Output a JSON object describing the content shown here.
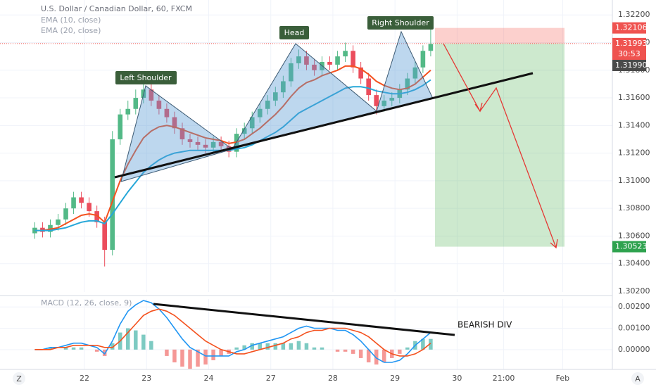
{
  "toolbar": {
    "left": "Z",
    "right": "A"
  },
  "chart_data": [
    {
      "type": "candlestick",
      "title": "U.S. Dollar / Canadian Dollar, 60, FXCM",
      "xlim": [
        -1.36,
        8.5
      ],
      "ylim": [
        1.30195,
        1.32308
      ],
      "yticks": [
        {
          "value": 1.302,
          "label": "1.30200"
        },
        {
          "value": 1.304,
          "label": "1.30400"
        },
        {
          "value": 1.306,
          "label": "1.30600"
        },
        {
          "value": 1.308,
          "label": "1.30800"
        },
        {
          "value": 1.31,
          "label": "1.31000"
        },
        {
          "value": 1.312,
          "label": "1.31200"
        },
        {
          "value": 1.314,
          "label": "1.31400"
        },
        {
          "value": 1.316,
          "label": "1.31600"
        },
        {
          "value": 1.318,
          "label": "1.31800"
        },
        {
          "value": 1.32,
          "label": "1.32000"
        },
        {
          "value": 1.322,
          "label": "1.32200"
        }
      ],
      "grid": true,
      "up_color": "#53b987",
      "down_color": "#eb4d5c",
      "x": [
        -0.8,
        -0.675,
        -0.55,
        -0.425,
        -0.3,
        -0.175,
        -0.05,
        0.075,
        0.2,
        0.325,
        0.45,
        0.575,
        0.7,
        0.825,
        0.95,
        1.075,
        1.2,
        1.325,
        1.45,
        1.575,
        1.7,
        1.825,
        1.95,
        2.075,
        2.2,
        2.325,
        2.45,
        2.575,
        2.7,
        2.825,
        2.95,
        3.075,
        3.2,
        3.325,
        3.45,
        3.575,
        3.7,
        3.825,
        3.95,
        4.075,
        4.2,
        4.325,
        4.45,
        4.575,
        4.7,
        4.825,
        4.95,
        5.075,
        5.2,
        5.325,
        5.45,
        5.575
      ],
      "open": [
        1.3062,
        1.3066,
        1.3063,
        1.3068,
        1.3072,
        1.308,
        1.3088,
        1.3084,
        1.3078,
        1.307,
        1.305,
        1.313,
        1.3148,
        1.3152,
        1.316,
        1.3166,
        1.3158,
        1.3152,
        1.3146,
        1.3138,
        1.313,
        1.3128,
        1.3126,
        1.3124,
        1.3128,
        1.3125,
        1.3121,
        1.3134,
        1.3138,
        1.3146,
        1.3152,
        1.3158,
        1.3164,
        1.3172,
        1.3185,
        1.319,
        1.3184,
        1.318,
        1.3186,
        1.3184,
        1.319,
        1.3194,
        1.3182,
        1.3174,
        1.3162,
        1.3154,
        1.3158,
        1.316,
        1.3166,
        1.3174,
        1.3182,
        1.3194
      ],
      "high": [
        1.307,
        1.307,
        1.3072,
        1.3076,
        1.3084,
        1.3092,
        1.3092,
        1.3088,
        1.3082,
        1.3074,
        1.3136,
        1.3152,
        1.3158,
        1.3166,
        1.317,
        1.317,
        1.3162,
        1.3156,
        1.315,
        1.3142,
        1.3134,
        1.3132,
        1.313,
        1.3132,
        1.3132,
        1.3129,
        1.3138,
        1.3142,
        1.315,
        1.3156,
        1.3162,
        1.3168,
        1.3176,
        1.3189,
        1.3195,
        1.3194,
        1.3188,
        1.319,
        1.319,
        1.3194,
        1.32,
        1.3198,
        1.3186,
        1.3178,
        1.3166,
        1.3162,
        1.3164,
        1.317,
        1.3178,
        1.3186,
        1.3198,
        1.321
      ],
      "low": [
        1.3058,
        1.3059,
        1.3059,
        1.3064,
        1.3068,
        1.3076,
        1.308,
        1.3074,
        1.3066,
        1.3038,
        1.3046,
        1.3126,
        1.3144,
        1.3148,
        1.3156,
        1.3154,
        1.3148,
        1.3142,
        1.3134,
        1.3126,
        1.3124,
        1.3122,
        1.312,
        1.312,
        1.3121,
        1.3117,
        1.3117,
        1.313,
        1.3134,
        1.3142,
        1.3148,
        1.3154,
        1.316,
        1.3168,
        1.3181,
        1.318,
        1.3176,
        1.3176,
        1.318,
        1.318,
        1.3186,
        1.3178,
        1.317,
        1.3158,
        1.3148,
        1.315,
        1.3154,
        1.3156,
        1.3162,
        1.317,
        1.3178,
        1.319
      ],
      "close": [
        1.3066,
        1.3063,
        1.3068,
        1.3072,
        1.308,
        1.3088,
        1.3084,
        1.3078,
        1.307,
        1.305,
        1.313,
        1.3148,
        1.3152,
        1.316,
        1.3166,
        1.3158,
        1.3152,
        1.3146,
        1.3138,
        1.313,
        1.3128,
        1.3126,
        1.3124,
        1.3128,
        1.3125,
        1.3121,
        1.3134,
        1.3138,
        1.3146,
        1.3152,
        1.3158,
        1.3164,
        1.3172,
        1.3185,
        1.319,
        1.3184,
        1.318,
        1.3186,
        1.3184,
        1.319,
        1.3194,
        1.3182,
        1.3174,
        1.3162,
        1.3154,
        1.3158,
        1.316,
        1.3166,
        1.3174,
        1.3182,
        1.3194,
        1.3199
      ],
      "series": [
        {
          "name": "EMA (10, close)",
          "color": "#f4511e",
          "values": [
            1.3064,
            1.3064,
            1.3065,
            1.3066,
            1.3069,
            1.3072,
            1.3075,
            1.3076,
            1.3075,
            1.307,
            1.3085,
            1.31,
            1.3112,
            1.3122,
            1.3131,
            1.3136,
            1.3139,
            1.314,
            1.3139,
            1.3137,
            1.3135,
            1.3133,
            1.3131,
            1.313,
            1.3129,
            1.3127,
            1.3128,
            1.313,
            1.3134,
            1.3138,
            1.3143,
            1.3148,
            1.3154,
            1.3161,
            1.3167,
            1.3171,
            1.3173,
            1.3176,
            1.3178,
            1.318,
            1.3183,
            1.3183,
            1.3181,
            1.3177,
            1.3172,
            1.3169,
            1.3167,
            1.3166,
            1.3167,
            1.317,
            1.3175,
            1.318
          ]
        },
        {
          "name": "EMA (20, close)",
          "color": "#26a7d8",
          "values": [
            1.3064,
            1.3064,
            1.3064,
            1.3065,
            1.3066,
            1.3068,
            1.307,
            1.3071,
            1.3071,
            1.3069,
            1.3076,
            1.3084,
            1.3092,
            1.3099,
            1.3106,
            1.3111,
            1.3115,
            1.3118,
            1.312,
            1.3121,
            1.3122,
            1.3122,
            1.3122,
            1.3122,
            1.3122,
            1.3122,
            1.3123,
            1.3124,
            1.3126,
            1.3129,
            1.3132,
            1.3135,
            1.3139,
            1.3144,
            1.3149,
            1.3152,
            1.3155,
            1.3158,
            1.3161,
            1.3164,
            1.3167,
            1.3168,
            1.3168,
            1.3167,
            1.3165,
            1.3164,
            1.3163,
            1.3163,
            1.3164,
            1.3166,
            1.3169,
            1.3173
          ]
        }
      ],
      "price_labels": [
        {
          "value": 1.32106,
          "label": "1.32106",
          "color": "#ef5350"
        },
        {
          "value": 1.31993,
          "label": "1.31993",
          "color": "#ef5350"
        },
        {
          "value": 1.3199,
          "label": "1.31990",
          "color": "#4a4a4a"
        },
        {
          "value": 1.30523,
          "label": "1.30523",
          "color": "#2ea24e"
        }
      ],
      "countdown": "30:53",
      "annotations": [
        "Left Shoulder",
        "Head",
        "Right Shoulder"
      ]
    },
    {
      "type": "macd",
      "legend": "MACD (12, 26, close, 9)",
      "annotation": "BEARISH DIV",
      "xlim": [
        -1.36,
        8.5
      ],
      "xticks": [
        {
          "value": 0,
          "label": "22"
        },
        {
          "value": 1,
          "label": "23"
        },
        {
          "value": 2,
          "label": "24"
        },
        {
          "value": 3,
          "label": "27"
        },
        {
          "value": 4,
          "label": "28"
        },
        {
          "value": 5,
          "label": "29"
        },
        {
          "value": 6,
          "label": "30"
        },
        {
          "value": 6.75,
          "label": "21:00"
        },
        {
          "value": 7.7,
          "label": "Feb"
        }
      ],
      "ylim": [
        -0.00093,
        0.00237
      ],
      "yticks": [
        {
          "value": 0,
          "label": "0.00000"
        },
        {
          "value": 0.001,
          "label": "0.00100"
        },
        {
          "value": 0.002,
          "label": "0.00200"
        }
      ],
      "grid": true,
      "hist_up_color": "#26a69a",
      "hist_down_color": "#ef5350",
      "histogram": [
        0,
        0,
        0.0001,
        0,
        0.0001,
        0.0001,
        0.0001,
        0,
        -0.0001,
        -0.0003,
        0.0003,
        0.0008,
        0.001,
        0.0009,
        0.0007,
        0.0004,
        0,
        -0.0003,
        -0.0006,
        -0.0008,
        -0.0009,
        -0.0008,
        -0.0007,
        -0.0005,
        -0.0003,
        -0.0002,
        0.0001,
        0.0002,
        0.0003,
        0.0003,
        0.0003,
        0.0003,
        0.0003,
        0.0003,
        0.0004,
        0.0003,
        0.0001,
        0.0001,
        0,
        -0.0001,
        -0.0001,
        -0.0002,
        -0.0004,
        -0.0006,
        -0.0007,
        -0.0006,
        -0.0004,
        -0.0002,
        0.0001,
        0.0004,
        0.0005,
        0.0005
      ],
      "macd_color": "#2196f3",
      "macd": [
        0,
        0,
        0.0001,
        0.0001,
        0.0002,
        0.0003,
        0.0003,
        0.0002,
        0.0001,
        -0.0002,
        0.0004,
        0.0012,
        0.0018,
        0.0021,
        0.0023,
        0.0022,
        0.0019,
        0.0015,
        0.001,
        0.0005,
        0.0001,
        -0.0001,
        -0.0003,
        -0.0003,
        -0.0003,
        -0.0003,
        -0.0001,
        0,
        0.0002,
        0.0003,
        0.0004,
        0.0005,
        0.0006,
        0.0008,
        0.001,
        0.0011,
        0.001,
        0.001,
        0.001,
        0.0009,
        0.0009,
        0.0007,
        0.0004,
        0,
        -0.0004,
        -0.0006,
        -0.0006,
        -0.0005,
        -0.0002,
        0.0002,
        0.0005,
        0.0008
      ],
      "signal_color": "#f4511e",
      "signal": [
        0,
        0,
        0,
        0.0001,
        0.0001,
        0.0002,
        0.0002,
        0.0002,
        0.0002,
        0.0001,
        0.0001,
        0.0004,
        0.0008,
        0.0012,
        0.0016,
        0.0018,
        0.0019,
        0.0018,
        0.0016,
        0.0013,
        0.001,
        0.0007,
        0.0004,
        0.0002,
        0,
        -0.0001,
        -0.0002,
        -0.0002,
        -0.0001,
        0,
        0.0001,
        0.0002,
        0.0003,
        0.0005,
        0.0006,
        0.0008,
        0.0009,
        0.0009,
        0.001,
        0.001,
        0.001,
        0.0009,
        0.0008,
        0.0006,
        0.0003,
        0,
        -0.0002,
        -0.0003,
        -0.0003,
        -0.0002,
        0,
        0.0003
      ]
    }
  ]
}
